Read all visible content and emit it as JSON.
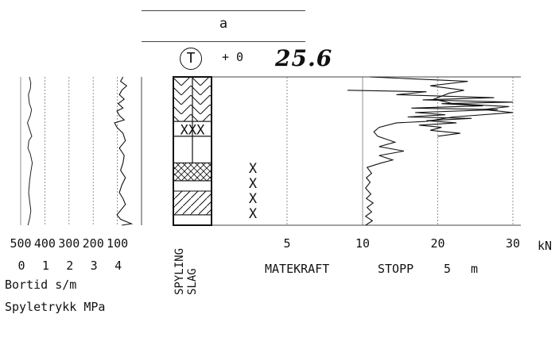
{
  "header": {
    "box_label": "a",
    "marker_symbol": "T",
    "elevation_label": "+ 0",
    "handwritten_depth": "25.6"
  },
  "chart_data": {
    "type": "line",
    "title": "",
    "panels": [
      {
        "name": "bortid_spyletrykk",
        "ticks_top": [
          "500",
          "400",
          "300",
          "200",
          "100"
        ],
        "ticks_bottom": [
          "0",
          "1",
          "2",
          "3",
          "4"
        ],
        "xlabels": [
          "Bortid s/m",
          "Spyletrykk MPa"
        ],
        "series": [
          {
            "key": "bortid",
            "x_range": [
              500,
              0
            ],
            "points": [
              [
                470,
                0.0
              ],
              [
                462,
                0.5
              ],
              [
                458,
                1.0
              ],
              [
                462,
                1.5
              ],
              [
                467,
                2.2
              ],
              [
                463,
                3.0
              ],
              [
                458,
                3.6
              ],
              [
                452,
                4.2
              ],
              [
                460,
                4.8
              ],
              [
                470,
                5.2
              ],
              [
                466,
                5.7
              ],
              [
                454,
                6.0
              ],
              [
                462,
                6.4
              ],
              [
                472,
                6.9
              ],
              [
                460,
                7.4
              ],
              [
                455,
                7.8
              ],
              [
                464,
                8.2
              ],
              [
                468,
                8.8
              ],
              [
                460,
                9.2
              ],
              [
                458,
                9.6
              ],
              [
                464,
                10.0
              ]
            ]
          },
          {
            "key": "spyletrykk",
            "x_range": [
              0,
              5
            ],
            "points": [
              [
                4.15,
                0.0
              ],
              [
                4.55,
                0.1
              ],
              [
                4.1,
                0.4
              ],
              [
                3.95,
                0.7
              ],
              [
                4.1,
                1.0
              ],
              [
                4.3,
                1.4
              ],
              [
                4.2,
                1.8
              ],
              [
                4.05,
                2.2
              ],
              [
                4.15,
                2.7
              ],
              [
                4.3,
                3.2
              ],
              [
                4.1,
                3.7
              ],
              [
                4.2,
                4.2
              ],
              [
                4.25,
                4.7
              ],
              [
                4.05,
                5.2
              ],
              [
                4.3,
                5.7
              ],
              [
                4.2,
                6.2
              ],
              [
                3.95,
                6.6
              ],
              [
                3.85,
                6.9
              ],
              [
                4.25,
                7.1
              ],
              [
                4.05,
                7.4
              ],
              [
                3.95,
                7.7
              ],
              [
                4.2,
                7.9
              ],
              [
                4.0,
                8.2
              ],
              [
                4.25,
                8.5
              ],
              [
                4.05,
                8.8
              ],
              [
                4.15,
                9.1
              ],
              [
                4.35,
                9.4
              ],
              [
                4.1,
                9.7
              ],
              [
                4.2,
                10.0
              ]
            ]
          }
        ]
      },
      {
        "name": "spyling_slag",
        "xlabels": [
          "SPYLING",
          "SLAG"
        ],
        "lithology": [
          {
            "from": 0.0,
            "to": 0.7,
            "pattern": "plain"
          },
          {
            "from": 0.7,
            "to": 2.3,
            "pattern": "diagonal"
          },
          {
            "from": 2.3,
            "to": 3.0,
            "pattern": "plain"
          },
          {
            "from": 3.0,
            "to": 4.2,
            "pattern": "crosshatch"
          },
          {
            "from": 4.2,
            "to": 6.0,
            "pattern": "plain"
          },
          {
            "from": 6.0,
            "to": 7.0,
            "pattern": "xxx"
          },
          {
            "from": 7.0,
            "to": 10.0,
            "pattern": "chevron"
          }
        ],
        "xxx_marks": [
          "XXX"
        ]
      },
      {
        "name": "matekraft",
        "ticks": [
          5,
          10,
          20,
          30
        ],
        "unit": "kN",
        "xlabels": [
          "MATEKRAFT",
          "STOPP",
          "5",
          "m"
        ],
        "x_marks": [
          "X",
          "X",
          "X",
          "X"
        ],
        "series": [
          {
            "key": "matekraft",
            "points": [
              [
                10.4,
                0.0
              ],
              [
                11.3,
                0.3
              ],
              [
                10.4,
                0.6
              ],
              [
                11.2,
                0.9
              ],
              [
                10.6,
                1.2
              ],
              [
                11.4,
                1.5
              ],
              [
                10.5,
                1.8
              ],
              [
                11.1,
                2.1
              ],
              [
                10.4,
                2.5
              ],
              [
                11.0,
                2.9
              ],
              [
                10.5,
                3.2
              ],
              [
                11.2,
                3.5
              ],
              [
                10.6,
                3.9
              ],
              [
                12.5,
                4.2
              ],
              [
                14.0,
                4.4
              ],
              [
                12.2,
                4.7
              ],
              [
                15.5,
                5.0
              ],
              [
                12.2,
                5.3
              ],
              [
                14.3,
                5.6
              ],
              [
                12.0,
                6.0
              ],
              [
                11.5,
                6.3
              ],
              [
                12.2,
                6.6
              ],
              [
                14.5,
                6.9
              ],
              [
                18.5,
                7.0
              ],
              [
                22.0,
                7.3
              ],
              [
                30.0,
                7.6
              ],
              [
                26.0,
                7.8
              ],
              [
                29.5,
                8.0
              ],
              [
                22.0,
                8.2
              ],
              [
                19.5,
                8.5
              ],
              [
                21.5,
                8.9
              ],
              [
                23.5,
                9.1
              ],
              [
                19.0,
                9.4
              ],
              [
                24.0,
                9.7
              ],
              [
                11.0,
                10.0
              ]
            ]
          },
          {
            "key": "matekraft_top",
            "points": [
              [
                9.0,
                9.1
              ],
              [
                18.5,
                9.0
              ],
              [
                14.5,
                8.8
              ],
              [
                27.5,
                8.6
              ],
              [
                18.0,
                8.45
              ],
              [
                30.0,
                8.3
              ],
              [
                20.5,
                8.2
              ],
              [
                26.0,
                8.05
              ],
              [
                16.5,
                7.9
              ],
              [
                28.0,
                7.8
              ],
              [
                17.0,
                7.6
              ],
              [
                21.0,
                7.45
              ],
              [
                16.0,
                7.3
              ],
              [
                24.5,
                7.2
              ],
              [
                18.5,
                7.05
              ],
              [
                22.5,
                6.9
              ],
              [
                17.5,
                6.75
              ],
              [
                20.5,
                6.6
              ],
              [
                19.0,
                6.4
              ],
              [
                23.0,
                6.2
              ],
              [
                20.0,
                6.0
              ]
            ]
          }
        ]
      }
    ],
    "ylabel": "",
    "grid": true
  }
}
